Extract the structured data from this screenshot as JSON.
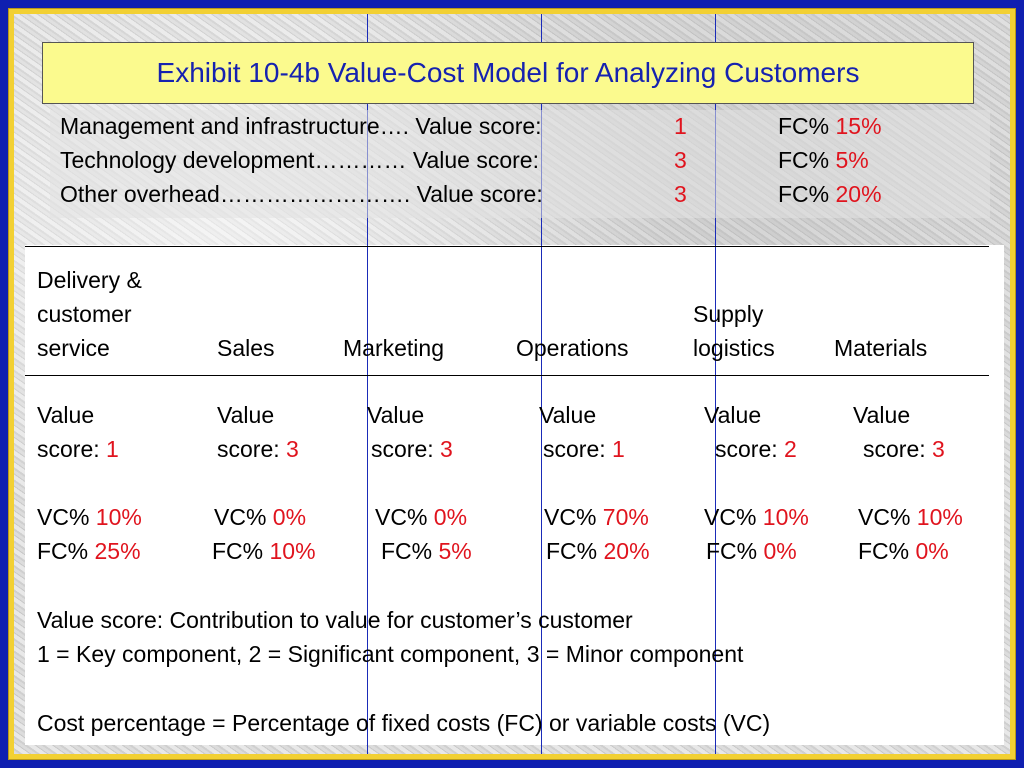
{
  "title": "Exhibit 10-4b Value-Cost Model for Analyzing Customers",
  "overhead": [
    {
      "label": "Management and infrastructure…. Value score:",
      "score": "1",
      "fc_label": "FC%",
      "fc": "15%"
    },
    {
      "label": "Technology development………… Value score:",
      "score": "3",
      "fc_label": "FC%",
      "fc": "5%"
    },
    {
      "label": "Other overhead……………………. Value score:",
      "score": "3",
      "fc_label": "FC%",
      "fc": "20%"
    }
  ],
  "headers": {
    "delivery_l1": "Delivery &",
    "delivery_l2": "customer",
    "delivery_l3": "service",
    "sales": "Sales",
    "marketing": "Marketing",
    "operations": "Operations",
    "supply_l1": "Supply",
    "supply_l2": "logistics",
    "materials": "Materials"
  },
  "labels": {
    "value": "Value",
    "score": "score:",
    "vc": "VC%",
    "fc": "FC%"
  },
  "columns": [
    {
      "name": "Delivery & customer service",
      "score": "1",
      "vc": "10%",
      "fc": "25%"
    },
    {
      "name": "Sales",
      "score": "3",
      "vc": "0%",
      "fc": "10%"
    },
    {
      "name": "Marketing",
      "score": "3",
      "vc": "0%",
      "fc": "5%"
    },
    {
      "name": "Operations",
      "score": "1",
      "vc": "70%",
      "fc": "20%"
    },
    {
      "name": "Supply logistics",
      "score": "2",
      "vc": "10%",
      "fc": "0%"
    },
    {
      "name": "Materials",
      "score": "3",
      "vc": "10%",
      "fc": "0%"
    }
  ],
  "notes": {
    "line1": "Value score: Contribution to value for customer’s customer",
    "line2": "1 = Key component, 2 = Significant component, 3 = Minor component",
    "line3": "Cost percentage = Percentage of fixed costs (FC) or variable costs (VC)"
  },
  "colors": {
    "accent": "#e0141e",
    "title_text": "#1622b0",
    "border": "#0f1fb0",
    "frame": "#f2d033"
  }
}
